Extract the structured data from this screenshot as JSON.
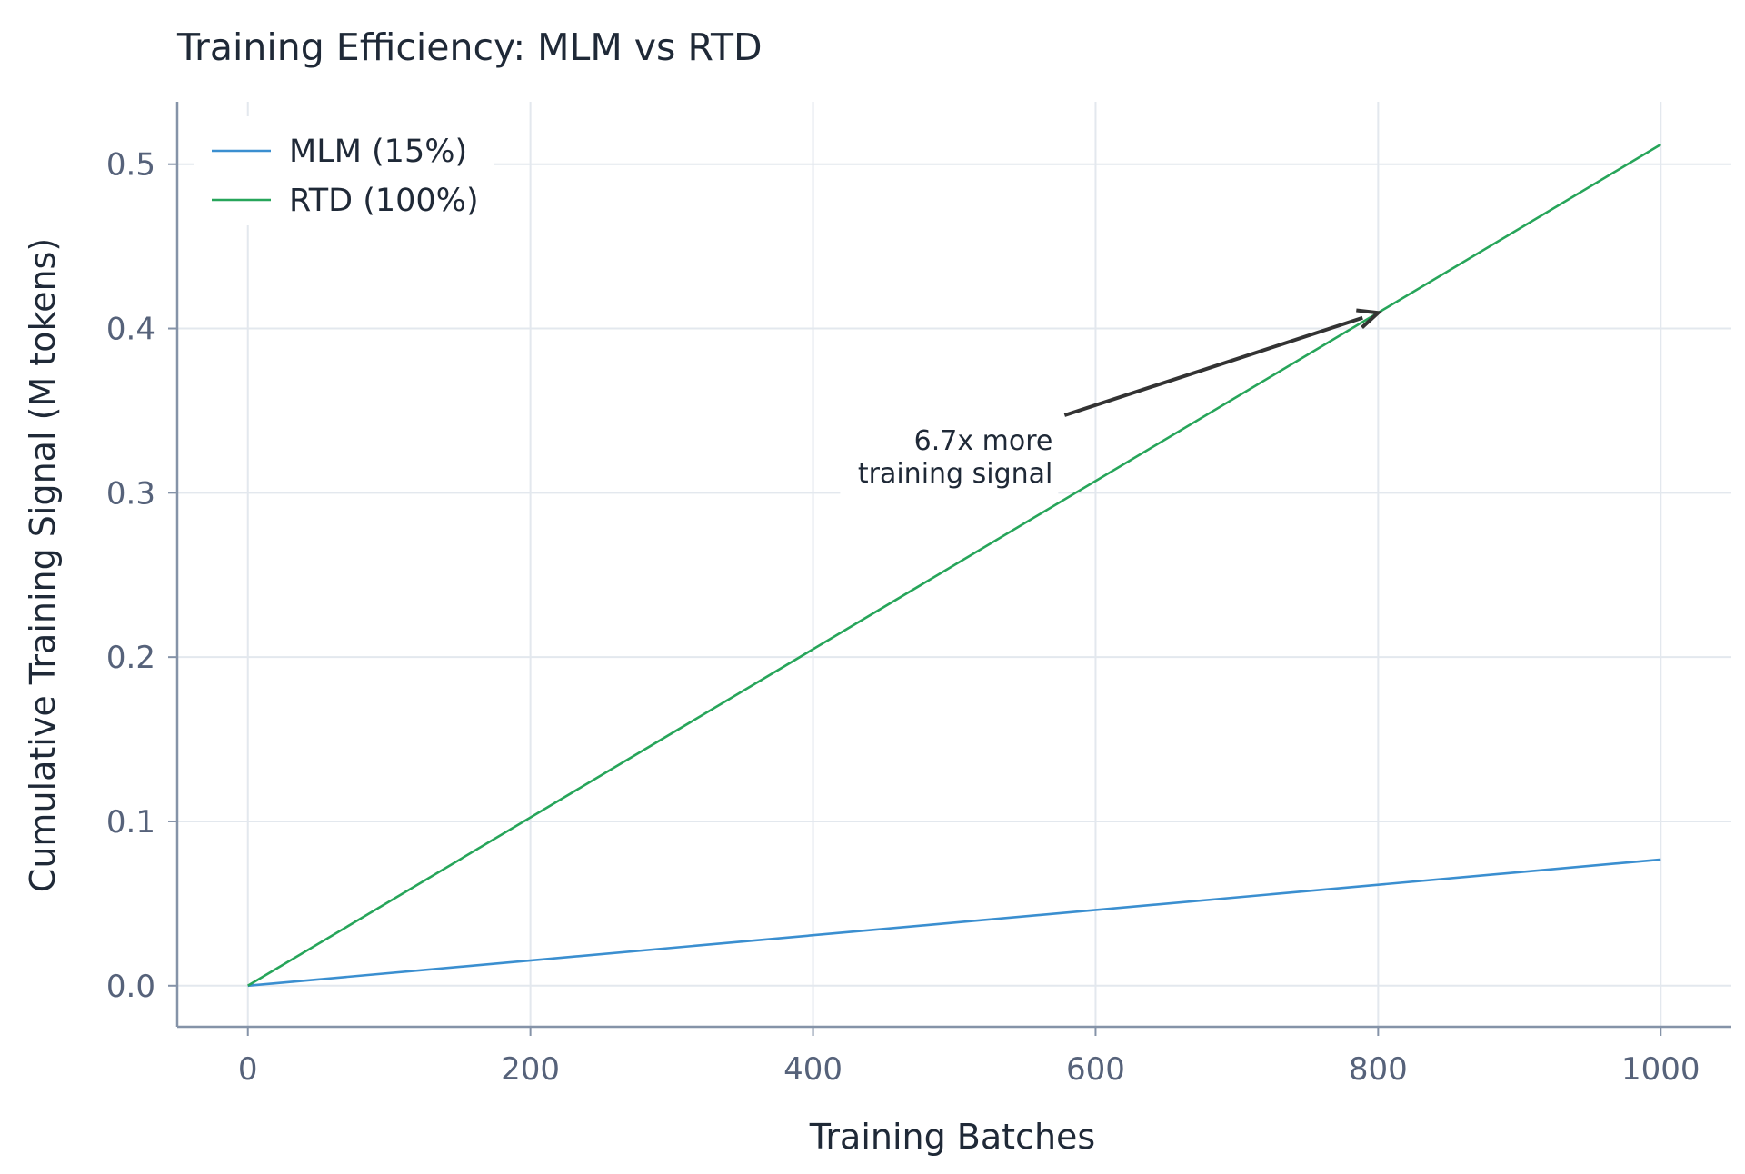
{
  "chart_data": {
    "type": "line",
    "title": "Training Efficiency: MLM vs RTD",
    "xlabel": "Training Batches",
    "ylabel": "Cumulative Training Signal (M tokens)",
    "xlim": [
      -50,
      1050
    ],
    "ylim": [
      -0.025,
      0.538
    ],
    "xticks": [
      0,
      200,
      400,
      600,
      800,
      1000
    ],
    "xtick_labels": [
      "0",
      "200",
      "400",
      "600",
      "800",
      "1000"
    ],
    "yticks": [
      0.0,
      0.1,
      0.2,
      0.3,
      0.4,
      0.5
    ],
    "ytick_labels": [
      "0.0",
      "0.1",
      "0.2",
      "0.3",
      "0.4",
      "0.5"
    ],
    "grid": true,
    "legend_position": "top-left",
    "series": [
      {
        "name": "MLM (15%)",
        "color": "#3b8fd0",
        "x": [
          0,
          1000
        ],
        "y": [
          0.0,
          0.0768
        ]
      },
      {
        "name": "RTD (100%)",
        "color": "#27a55a",
        "x": [
          0,
          1000
        ],
        "y": [
          0.0,
          0.512
        ]
      }
    ],
    "annotation": {
      "lines": [
        "6.7x more",
        "training signal"
      ],
      "text_at": [
        580,
        0.345
      ],
      "arrow_to": [
        800,
        0.4096
      ],
      "color": "#333333"
    }
  }
}
